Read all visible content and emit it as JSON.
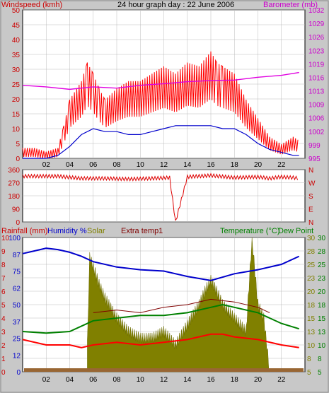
{
  "chart_data": [
    {
      "type": "line",
      "title": "24 hour graph day : 22 June 2006",
      "ylabel_left": "Windspeed (kmh)",
      "ylabel_right": "Barometer (mb)",
      "ylim_left": [
        0,
        50
      ],
      "ylim_right": [
        995,
        1032
      ],
      "yticks_left": [
        "50",
        "45",
        "40",
        "35",
        "30",
        "25",
        "20",
        "15",
        "10",
        "5",
        "0"
      ],
      "yticks_right": [
        "1032",
        "1029",
        "1026",
        "1023",
        "1019",
        "1016",
        "1013",
        "1009",
        "1006",
        "1002",
        "999",
        "995"
      ],
      "xticks": [
        "02",
        "04",
        "06",
        "08",
        "10",
        "12",
        "14",
        "16",
        "18",
        "20",
        "22"
      ],
      "grid": true,
      "colors": {
        "gust": "#ff0000",
        "avg": "#0000cc",
        "baro": "#e000e0",
        "left_axis": "#cc0000",
        "right_axis": "#cc00cc"
      },
      "series": [
        {
          "name": "Windspeed (kmh)",
          "kind": "gust",
          "x": [
            0,
            1,
            2,
            3,
            3.5,
            4,
            5,
            5.5,
            6,
            6.5,
            7,
            8,
            9,
            10,
            11,
            12,
            13,
            14,
            15,
            16,
            16.5,
            17,
            18,
            19,
            20,
            21,
            22,
            23,
            23.5
          ],
          "values": [
            2,
            2,
            1,
            2,
            8,
            15,
            20,
            25,
            22,
            18,
            15,
            18,
            20,
            20,
            22,
            24,
            22,
            25,
            24,
            28,
            25,
            24,
            22,
            15,
            10,
            5,
            3,
            5,
            4
          ]
        },
        {
          "name": "Windspeed (kmh)",
          "kind": "avg",
          "x": [
            0,
            2,
            3,
            4,
            5,
            6,
            7,
            8,
            9,
            10,
            11,
            12,
            13,
            14,
            15,
            16,
            17,
            18,
            19,
            20,
            21,
            22,
            23,
            23.5
          ],
          "values": [
            0,
            0,
            1,
            4,
            8,
            10,
            9,
            9,
            8,
            8,
            9,
            10,
            11,
            11,
            11,
            11,
            10,
            10,
            8,
            5,
            3,
            2,
            1,
            1
          ]
        },
        {
          "name": "Barometer (mb)",
          "kind": "baro",
          "x": [
            0,
            2,
            4,
            6,
            8,
            10,
            12,
            14,
            16,
            18,
            20,
            22,
            23.5
          ],
          "values": [
            1013.2,
            1012.8,
            1012.2,
            1012.8,
            1012.5,
            1013.2,
            1013.6,
            1014.1,
            1014.4,
            1014.5,
            1015.2,
            1015.7,
            1016.4
          ]
        }
      ]
    },
    {
      "type": "scatter",
      "ylabel_left_ticks": [
        "360",
        "270",
        "180",
        "90",
        "0"
      ],
      "ylabel_right_ticks": [
        "N",
        "W",
        "S",
        "E",
        "N"
      ],
      "ylim": [
        0,
        360
      ],
      "series": [
        {
          "name": "Wind direction",
          "x": [
            0,
            3,
            5,
            7,
            9,
            11,
            12.5,
            13,
            14,
            16,
            18,
            20,
            21,
            22,
            23,
            23.5
          ],
          "values": [
            315,
            315,
            300,
            300,
            295,
            300,
            305,
            0,
            310,
            320,
            305,
            310,
            300,
            310,
            305,
            300
          ]
        }
      ]
    },
    {
      "type": "line",
      "ylabel_rainfall": "Rainfall (mm)",
      "ylabel_humidity": "Humidity %",
      "ylabel_solar": "Solar",
      "ylabel_extra": "Extra temp1",
      "ylabel_temp": "Temperature (°C)",
      "ylabel_dew": "Dew Point",
      "ticks_rainfall": [
        "10",
        "9",
        "8",
        "7",
        "6",
        "5",
        "4",
        "3",
        "2",
        "1",
        "0"
      ],
      "ticks_humidity": [
        "100",
        "87",
        "75",
        "62",
        "50",
        "37",
        "25",
        "12",
        "0"
      ],
      "ticks_humidity2": [
        "30",
        "28",
        "25",
        "23",
        "20",
        "18",
        "15",
        "13",
        "10",
        "8",
        "5"
      ],
      "ticks_temp": [
        "30",
        "28",
        "25",
        "23",
        "20",
        "18",
        "15",
        "13",
        "10",
        "8",
        "5"
      ],
      "ylim_temp": [
        5,
        30
      ],
      "colors": {
        "humidity": "#0000cc",
        "solar": "#808000",
        "extra": "#800000",
        "temp": "#ff0000",
        "dew": "#008000"
      },
      "series": [
        {
          "name": "Humidity %",
          "x": [
            0,
            1,
            2,
            3,
            4,
            5,
            6,
            8,
            10,
            12,
            14,
            16,
            18,
            20,
            22,
            23.5
          ],
          "values": [
            88,
            90,
            92,
            91,
            89,
            86,
            82,
            78,
            76,
            75,
            71,
            68,
            73,
            76,
            80,
            86
          ]
        },
        {
          "name": "Temperature (°C)",
          "x": [
            0,
            2,
            4,
            5,
            6,
            8,
            10,
            12,
            14,
            16,
            17,
            18,
            20,
            22,
            23.5
          ],
          "values": [
            11,
            10,
            10,
            9.5,
            10,
            10.5,
            10,
            10.5,
            11,
            12,
            12,
            11.5,
            11,
            10,
            9.5
          ]
        },
        {
          "name": "Dew Point",
          "x": [
            0,
            2,
            4,
            6,
            8,
            10,
            12,
            14,
            16,
            17,
            18,
            20,
            22,
            23.5
          ],
          "values": [
            12.5,
            12.2,
            12.5,
            14.5,
            15,
            15.5,
            15.5,
            16,
            17,
            17.5,
            17,
            16,
            14,
            13
          ]
        },
        {
          "name": "Extra temp1",
          "x": [
            6,
            8,
            10,
            12,
            14,
            16,
            18,
            20,
            21
          ],
          "values": [
            16,
            16.5,
            16,
            17,
            17.5,
            18.5,
            18,
            17,
            16
          ]
        },
        {
          "name": "Solar",
          "x": [
            5.5,
            5.7,
            6,
            6.5,
            7,
            8,
            9,
            10,
            11,
            12,
            13,
            14,
            15,
            15.5,
            16,
            16.5,
            17,
            18,
            19,
            19.5,
            20,
            20.5,
            21
          ],
          "values": [
            2,
            8.5,
            7.8,
            6.5,
            5.5,
            4,
            3,
            2.5,
            2.5,
            3,
            2,
            3.5,
            5,
            6,
            6.8,
            6,
            5,
            4,
            3,
            9.9,
            5,
            4,
            0
          ]
        },
        {
          "name": "Rainfall (mm)",
          "x": [
            0,
            23.5
          ],
          "values": [
            0,
            0
          ]
        }
      ]
    }
  ]
}
